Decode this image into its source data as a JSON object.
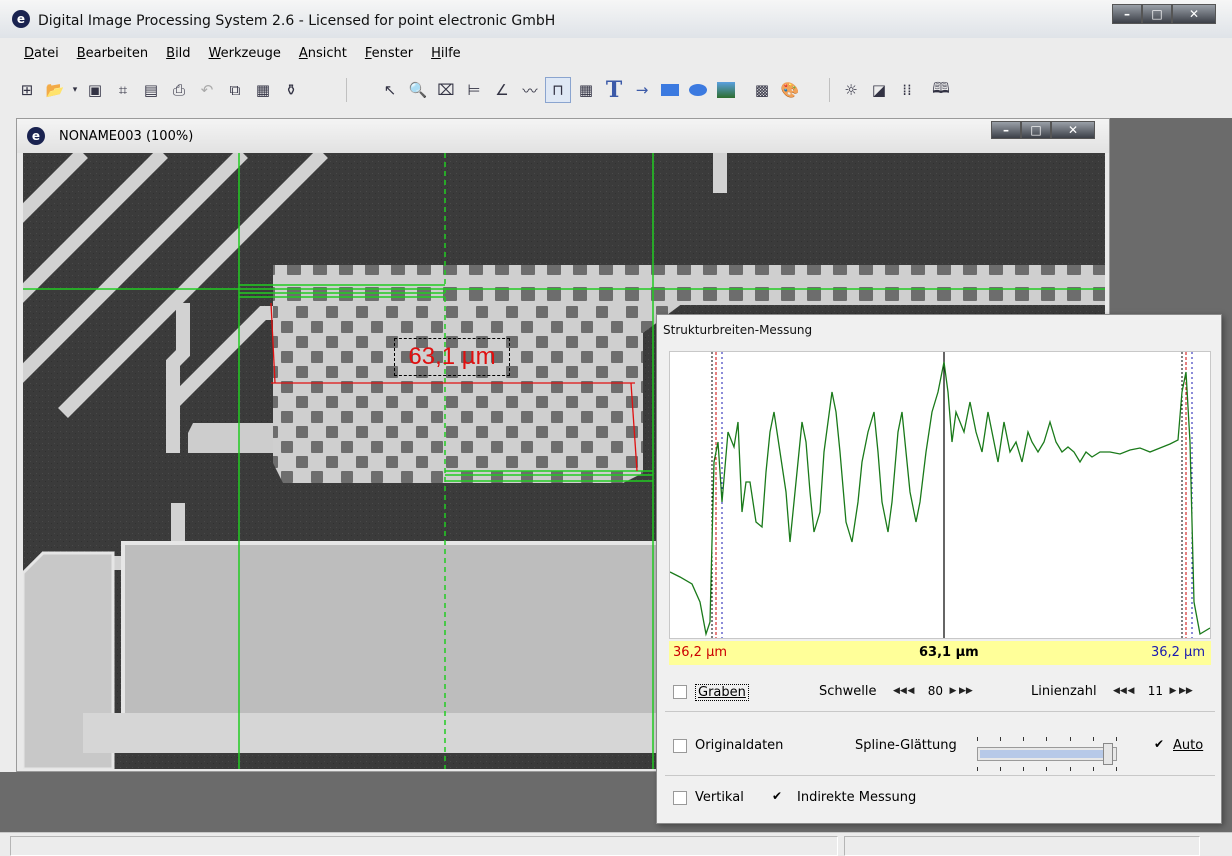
{
  "app": {
    "title": "Digital Image Processing System 2.6 - Licensed for point electronic GmbH",
    "icon": "app-logo-icon"
  },
  "menu": [
    "Datei",
    "Bearbeiten",
    "Bild",
    "Werkzeuge",
    "Ansicht",
    "Fenster",
    "Hilfe"
  ],
  "toolbar": {
    "groups": [
      [
        "tree-icon",
        "open-folder-icon",
        "dropdown-arrow-icon",
        "save-icon",
        "scan-icon",
        "save-auto-icon",
        "print-icon",
        "undo-icon",
        "copy-icon",
        "paste-icon",
        "properties-icon"
      ],
      [
        "pointer-icon",
        "zoom-icon",
        "crop-icon",
        "measure-width-icon",
        "measure-angle-icon",
        "profile-icon",
        "structure-width-icon",
        "table-icon",
        "text-icon",
        "arrow-icon",
        "rectangle-icon",
        "ellipse-icon",
        "text-image-icon",
        "image-stack-icon",
        "palette-icon"
      ],
      [
        "brightness-icon",
        "histogram-icon",
        "grid-dots-icon",
        "book-icon"
      ]
    ]
  },
  "image_window": {
    "title": "NONAME003 (100%)",
    "measurement_label": "63,1 µm"
  },
  "panel": {
    "title": "Strukturbreiten-Messung",
    "readout": {
      "left": "36,2 µm",
      "center": "63,1 µm",
      "right": "36,2 µm"
    },
    "graben": {
      "label": "Graben",
      "checked": false
    },
    "schwelle": {
      "label": "Schwelle",
      "value": "80"
    },
    "linienzahl": {
      "label": "Linienzahl",
      "value": "11"
    },
    "originaldaten": {
      "label": "Originaldaten",
      "checked": false
    },
    "spline": {
      "label": "Spline-Glättung",
      "fraction": 0.92
    },
    "auto": {
      "label": "Auto",
      "checked": true
    },
    "vertikal": {
      "label": "Vertikal",
      "checked": false
    },
    "indirekte": {
      "label": "Indirekte Messung",
      "checked": true
    }
  },
  "colors": {
    "measure_red": "#e01010",
    "profile_green": "#1a7a1a",
    "guide_green": "#22cc22",
    "readout_bg": "#ffff99"
  }
}
